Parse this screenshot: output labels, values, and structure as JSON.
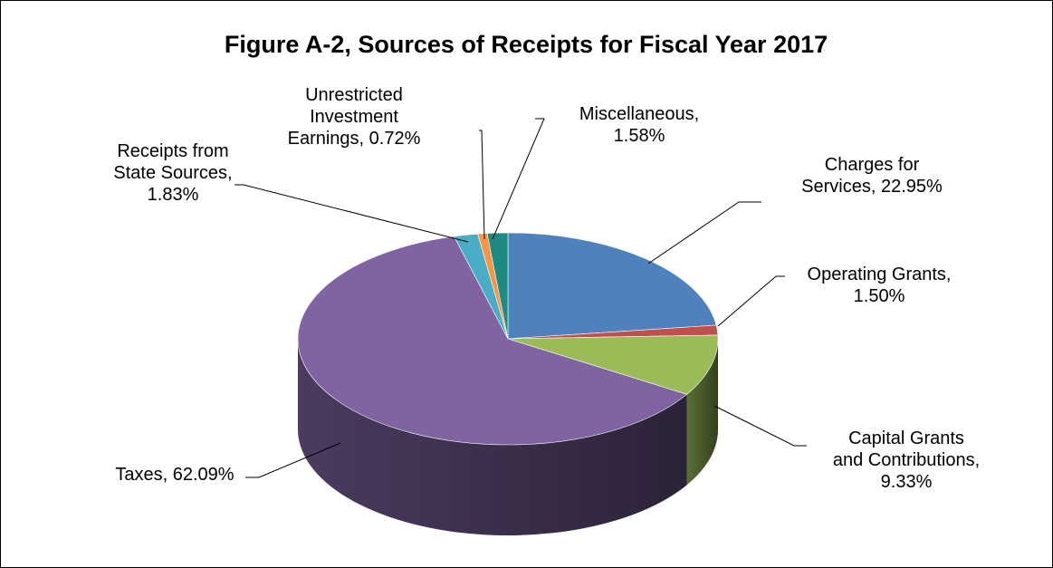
{
  "chart_data": {
    "type": "pie",
    "title": "Figure A-2, Sources of Receipts for Fiscal Year 2017",
    "slices": [
      {
        "label_lines": [
          "Charges for",
          "Services, 22.95%"
        ],
        "value": 22.95,
        "color": "#4F81BD"
      },
      {
        "label_lines": [
          "Operating Grants,",
          "1.50%"
        ],
        "value": 1.5,
        "color": "#C0504D"
      },
      {
        "label_lines": [
          "Capital Grants",
          "and Contributions,",
          "9.33%"
        ],
        "value": 9.33,
        "color": "#9BBB59"
      },
      {
        "label_lines": [
          "Taxes, 62.09%"
        ],
        "value": 62.09,
        "color": "#8064A2"
      },
      {
        "label_lines": [
          "Receipts from",
          "State Sources,",
          "1.83%"
        ],
        "value": 1.83,
        "color": "#4BACC6"
      },
      {
        "label_lines": [
          "Unrestricted",
          "Investment",
          "Earnings, 0.72%"
        ],
        "value": 0.72,
        "color": "#F79646"
      },
      {
        "label_lines": [
          "Miscellaneous,",
          "1.58%"
        ],
        "value": 1.58,
        "color": "#1F8A82"
      }
    ]
  }
}
